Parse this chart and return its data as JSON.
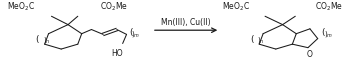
{
  "background_color": "#ffffff",
  "arrow_label": "Mn(III), Cu(II)",
  "line_color": "#1a1a1a",
  "text_color": "#1a1a1a",
  "figsize": [
    3.63,
    0.6
  ],
  "dpi": 100,
  "font_size": 5.5
}
